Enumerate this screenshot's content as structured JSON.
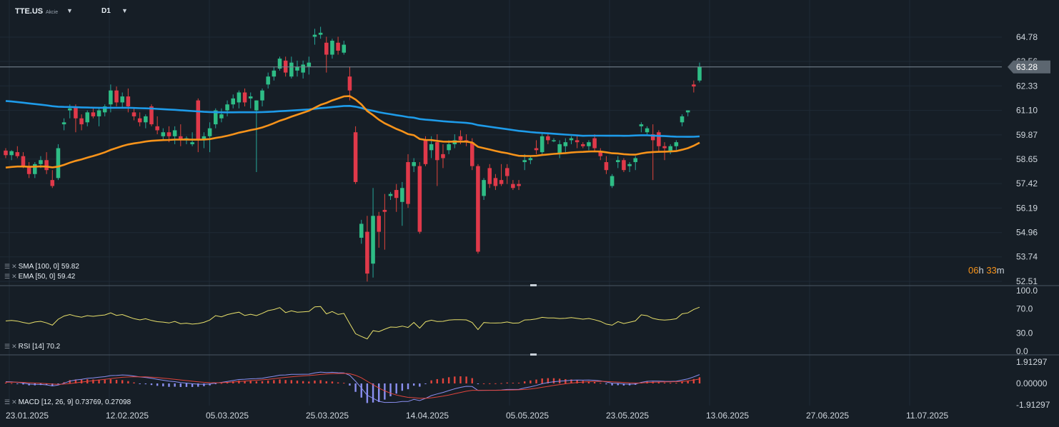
{
  "header": {
    "symbol": "TTE.US",
    "asset_type": "Akcie",
    "timeframe": "D1",
    "dropdown_glyph": "▼"
  },
  "indicators": {
    "sma": {
      "label": "SMA [100, 0]",
      "value": "59.82",
      "color": "#1e9be9"
    },
    "ema": {
      "label": "EMA [50, 0]",
      "value": "59.42",
      "color": "#f7931a"
    },
    "rsi": {
      "label": "RSI [14]",
      "value": "70.2",
      "color": "#e8e06a"
    },
    "macd": {
      "label": "MACD [12, 26, 9]",
      "value": "0.73769,  0.27098",
      "line_color": "#8a8ff0",
      "signal_color": "#e0443c"
    }
  },
  "timer": {
    "hours": "06",
    "h": "h",
    "minutes": "33",
    "m": "m"
  },
  "chart_data": {
    "type": "candlestick",
    "price_axis": [
      "64.78",
      "63.56",
      "62.33",
      "61.10",
      "59.87",
      "58.65",
      "57.42",
      "56.19",
      "54.96",
      "53.74",
      "52.51"
    ],
    "current_price": "63.28",
    "ylim": [
      52.51,
      64.78
    ],
    "rsi_axis": [
      "100.0",
      "70.0",
      "30.0",
      "0.0"
    ],
    "macd_axis": [
      "1.91297",
      "0.00000",
      "-1.91297"
    ],
    "date_labels": [
      "23.01.2025",
      "12.02.2025",
      "05.03.2025",
      "25.03.2025",
      "14.04.2025",
      "05.05.2025",
      "23.05.2025",
      "13.06.2025",
      "27.06.2025",
      "11.07.2025"
    ],
    "candles": [
      {
        "o": 59.08,
        "h": 59.2,
        "l": 58.7,
        "c": 58.85
      },
      {
        "o": 58.85,
        "h": 59.1,
        "l": 58.6,
        "c": 59.05
      },
      {
        "o": 59.0,
        "h": 59.3,
        "l": 58.7,
        "c": 58.8
      },
      {
        "o": 58.8,
        "h": 59.0,
        "l": 58.2,
        "c": 58.3
      },
      {
        "o": 58.3,
        "h": 58.5,
        "l": 57.7,
        "c": 57.9
      },
      {
        "o": 57.9,
        "h": 58.5,
        "l": 57.7,
        "c": 58.4
      },
      {
        "o": 58.4,
        "h": 58.8,
        "l": 58.2,
        "c": 58.6
      },
      {
        "o": 58.6,
        "h": 59.0,
        "l": 57.9,
        "c": 58.1
      },
      {
        "o": 57.6,
        "h": 58.1,
        "l": 57.2,
        "c": 57.3
      },
      {
        "o": 57.7,
        "h": 59.4,
        "l": 57.6,
        "c": 59.2
      },
      {
        "o": 60.4,
        "h": 60.7,
        "l": 60.1,
        "c": 60.5
      },
      {
        "o": 61.1,
        "h": 61.4,
        "l": 60.7,
        "c": 61.2
      },
      {
        "o": 61.3,
        "h": 61.4,
        "l": 60.0,
        "c": 60.7
      },
      {
        "o": 60.7,
        "h": 60.9,
        "l": 60.1,
        "c": 60.4
      },
      {
        "o": 60.5,
        "h": 61.1,
        "l": 60.3,
        "c": 61.0
      },
      {
        "o": 61.0,
        "h": 61.2,
        "l": 60.7,
        "c": 60.8
      },
      {
        "o": 60.8,
        "h": 61.2,
        "l": 60.3,
        "c": 61.1
      },
      {
        "o": 61.0,
        "h": 61.4,
        "l": 60.8,
        "c": 61.3
      },
      {
        "o": 61.4,
        "h": 62.4,
        "l": 61.0,
        "c": 62.1
      },
      {
        "o": 62.1,
        "h": 62.3,
        "l": 61.3,
        "c": 61.5
      },
      {
        "o": 61.5,
        "h": 62.0,
        "l": 61.2,
        "c": 61.8
      },
      {
        "o": 61.8,
        "h": 62.2,
        "l": 61.0,
        "c": 61.3
      },
      {
        "o": 61.0,
        "h": 61.2,
        "l": 60.6,
        "c": 60.8
      },
      {
        "o": 60.7,
        "h": 61.0,
        "l": 60.3,
        "c": 60.5
      },
      {
        "o": 60.5,
        "h": 60.9,
        "l": 60.2,
        "c": 60.8
      },
      {
        "o": 61.3,
        "h": 61.4,
        "l": 60.3,
        "c": 60.4
      },
      {
        "o": 60.3,
        "h": 60.8,
        "l": 59.9,
        "c": 60.1
      },
      {
        "o": 59.8,
        "h": 60.2,
        "l": 59.6,
        "c": 60.0
      },
      {
        "o": 60.0,
        "h": 60.3,
        "l": 59.5,
        "c": 59.8
      },
      {
        "o": 59.8,
        "h": 60.3,
        "l": 59.4,
        "c": 60.1
      },
      {
        "o": 59.8,
        "h": 60.4,
        "l": 59.3,
        "c": 59.6
      },
      {
        "o": 59.6,
        "h": 59.8,
        "l": 59.4,
        "c": 59.7
      },
      {
        "o": 59.4,
        "h": 60.0,
        "l": 59.3,
        "c": 59.5
      },
      {
        "o": 61.6,
        "h": 61.7,
        "l": 59.0,
        "c": 59.6
      },
      {
        "o": 59.6,
        "h": 60.0,
        "l": 59.2,
        "c": 59.8
      },
      {
        "o": 59.8,
        "h": 60.5,
        "l": 59.0,
        "c": 60.2
      },
      {
        "o": 60.4,
        "h": 61.2,
        "l": 60.2,
        "c": 61.1
      },
      {
        "o": 60.7,
        "h": 61.2,
        "l": 60.5,
        "c": 60.9
      },
      {
        "o": 61.1,
        "h": 61.6,
        "l": 60.8,
        "c": 61.4
      },
      {
        "o": 61.4,
        "h": 61.9,
        "l": 61.2,
        "c": 61.7
      },
      {
        "o": 61.5,
        "h": 62.1,
        "l": 61.2,
        "c": 62.0
      },
      {
        "o": 62.0,
        "h": 62.2,
        "l": 61.3,
        "c": 61.5
      },
      {
        "o": 61.7,
        "h": 62.0,
        "l": 61.2,
        "c": 61.8
      },
      {
        "o": 61.1,
        "h": 61.6,
        "l": 58.0,
        "c": 61.6
      },
      {
        "o": 61.6,
        "h": 62.2,
        "l": 61.3,
        "c": 62.1
      },
      {
        "o": 62.4,
        "h": 63.0,
        "l": 62.2,
        "c": 62.8
      },
      {
        "o": 62.8,
        "h": 63.3,
        "l": 62.6,
        "c": 63.1
      },
      {
        "o": 63.2,
        "h": 63.8,
        "l": 63.1,
        "c": 63.7
      },
      {
        "o": 63.6,
        "h": 63.8,
        "l": 62.8,
        "c": 63.0
      },
      {
        "o": 62.8,
        "h": 63.8,
        "l": 62.7,
        "c": 63.5
      },
      {
        "o": 63.1,
        "h": 63.6,
        "l": 62.8,
        "c": 63.3
      },
      {
        "o": 63.0,
        "h": 63.6,
        "l": 62.7,
        "c": 63.4
      },
      {
        "o": 63.3,
        "h": 63.8,
        "l": 62.9,
        "c": 63.5
      },
      {
        "o": 64.8,
        "h": 65.2,
        "l": 64.4,
        "c": 64.9
      },
      {
        "o": 64.9,
        "h": 65.3,
        "l": 64.7,
        "c": 65.0
      },
      {
        "o": 64.5,
        "h": 64.8,
        "l": 63.0,
        "c": 63.9
      },
      {
        "o": 63.9,
        "h": 64.7,
        "l": 63.7,
        "c": 64.6
      },
      {
        "o": 64.5,
        "h": 64.8,
        "l": 63.9,
        "c": 64.1
      },
      {
        "o": 64.0,
        "h": 64.6,
        "l": 63.9,
        "c": 64.4
      },
      {
        "o": 62.8,
        "h": 63.3,
        "l": 61.6,
        "c": 62.1
      },
      {
        "o": 60.0,
        "h": 60.3,
        "l": 57.4,
        "c": 57.5
      },
      {
        "o": 54.7,
        "h": 55.6,
        "l": 54.4,
        "c": 55.4
      },
      {
        "o": 55.0,
        "h": 55.8,
        "l": 52.5,
        "c": 52.9
      },
      {
        "o": 53.4,
        "h": 57.2,
        "l": 52.7,
        "c": 55.8
      },
      {
        "o": 55.8,
        "h": 56.0,
        "l": 54.2,
        "c": 55.0
      },
      {
        "o": 56.1,
        "h": 56.9,
        "l": 54.1,
        "c": 56.0
      },
      {
        "o": 56.8,
        "h": 57.0,
        "l": 56.6,
        "c": 56.9
      },
      {
        "o": 57.1,
        "h": 57.4,
        "l": 56.0,
        "c": 56.7
      },
      {
        "o": 56.5,
        "h": 57.5,
        "l": 55.3,
        "c": 57.2
      },
      {
        "o": 58.5,
        "h": 58.9,
        "l": 56.2,
        "c": 56.4
      },
      {
        "o": 58.3,
        "h": 58.7,
        "l": 58.0,
        "c": 58.5
      },
      {
        "o": 58.3,
        "h": 58.5,
        "l": 54.9,
        "c": 55.0
      },
      {
        "o": 59.6,
        "h": 59.8,
        "l": 58.3,
        "c": 58.4
      },
      {
        "o": 59.1,
        "h": 59.8,
        "l": 58.7,
        "c": 59.4
      },
      {
        "o": 59.5,
        "h": 59.9,
        "l": 57.3,
        "c": 58.6
      },
      {
        "o": 58.9,
        "h": 59.4,
        "l": 58.2,
        "c": 58.7
      },
      {
        "o": 59.1,
        "h": 59.6,
        "l": 58.9,
        "c": 59.4
      },
      {
        "o": 59.4,
        "h": 59.9,
        "l": 59.2,
        "c": 59.6
      },
      {
        "o": 59.8,
        "h": 60.1,
        "l": 59.4,
        "c": 59.6
      },
      {
        "o": 59.6,
        "h": 59.9,
        "l": 59.3,
        "c": 59.5
      },
      {
        "o": 59.5,
        "h": 59.7,
        "l": 58.1,
        "c": 58.3
      },
      {
        "o": 58.3,
        "h": 58.4,
        "l": 53.9,
        "c": 54.0
      },
      {
        "o": 56.8,
        "h": 57.7,
        "l": 56.6,
        "c": 57.6
      },
      {
        "o": 58.2,
        "h": 58.4,
        "l": 57.2,
        "c": 57.4
      },
      {
        "o": 57.7,
        "h": 57.9,
        "l": 57.1,
        "c": 57.3
      },
      {
        "o": 57.6,
        "h": 58.4,
        "l": 57.3,
        "c": 57.4
      },
      {
        "o": 58.2,
        "h": 58.4,
        "l": 57.4,
        "c": 57.8
      },
      {
        "o": 57.4,
        "h": 57.6,
        "l": 57.1,
        "c": 57.2
      },
      {
        "o": 57.4,
        "h": 57.6,
        "l": 57.1,
        "c": 57.3
      },
      {
        "o": 58.5,
        "h": 58.9,
        "l": 58.1,
        "c": 58.6
      },
      {
        "o": 58.6,
        "h": 58.8,
        "l": 58.4,
        "c": 58.7
      },
      {
        "o": 59.2,
        "h": 59.6,
        "l": 58.9,
        "c": 59.1
      },
      {
        "o": 59.0,
        "h": 60.0,
        "l": 58.9,
        "c": 59.8
      },
      {
        "o": 59.8,
        "h": 59.9,
        "l": 59.4,
        "c": 59.6
      },
      {
        "o": 59.6,
        "h": 59.7,
        "l": 59.5,
        "c": 59.6
      },
      {
        "o": 58.9,
        "h": 59.6,
        "l": 58.7,
        "c": 59.4
      },
      {
        "o": 59.3,
        "h": 59.7,
        "l": 59.0,
        "c": 59.5
      },
      {
        "o": 59.6,
        "h": 59.8,
        "l": 59.4,
        "c": 59.7
      },
      {
        "o": 59.6,
        "h": 59.8,
        "l": 59.2,
        "c": 59.5
      },
      {
        "o": 59.4,
        "h": 59.5,
        "l": 59.2,
        "c": 59.3
      },
      {
        "o": 59.3,
        "h": 59.6,
        "l": 59.1,
        "c": 59.5
      },
      {
        "o": 59.7,
        "h": 59.9,
        "l": 59.0,
        "c": 59.2
      },
      {
        "o": 59.0,
        "h": 59.2,
        "l": 58.6,
        "c": 58.8
      },
      {
        "o": 58.5,
        "h": 58.8,
        "l": 57.9,
        "c": 58.1
      },
      {
        "o": 57.3,
        "h": 57.9,
        "l": 57.2,
        "c": 57.8
      },
      {
        "o": 58.5,
        "h": 58.8,
        "l": 58.2,
        "c": 58.6
      },
      {
        "o": 58.6,
        "h": 58.7,
        "l": 58.0,
        "c": 58.1
      },
      {
        "o": 58.3,
        "h": 58.5,
        "l": 58.0,
        "c": 58.4
      },
      {
        "o": 58.5,
        "h": 58.8,
        "l": 58.1,
        "c": 58.7
      },
      {
        "o": 60.3,
        "h": 60.5,
        "l": 60.0,
        "c": 60.4
      },
      {
        "o": 60.0,
        "h": 60.3,
        "l": 59.9,
        "c": 60.2
      },
      {
        "o": 59.9,
        "h": 60.4,
        "l": 57.6,
        "c": 59.6
      },
      {
        "o": 60.0,
        "h": 60.1,
        "l": 59.0,
        "c": 59.3
      },
      {
        "o": 59.3,
        "h": 59.5,
        "l": 58.6,
        "c": 59.2
      },
      {
        "o": 59.0,
        "h": 59.4,
        "l": 58.9,
        "c": 59.3
      },
      {
        "o": 59.3,
        "h": 59.6,
        "l": 59.1,
        "c": 59.5
      },
      {
        "o": 60.5,
        "h": 60.9,
        "l": 60.3,
        "c": 60.8
      },
      {
        "o": 61.0,
        "h": 61.1,
        "l": 60.8,
        "c": 61.1
      },
      {
        "o": 62.4,
        "h": 62.6,
        "l": 62.0,
        "c": 62.3
      },
      {
        "o": 62.6,
        "h": 63.5,
        "l": 62.5,
        "c": 63.3
      }
    ]
  }
}
